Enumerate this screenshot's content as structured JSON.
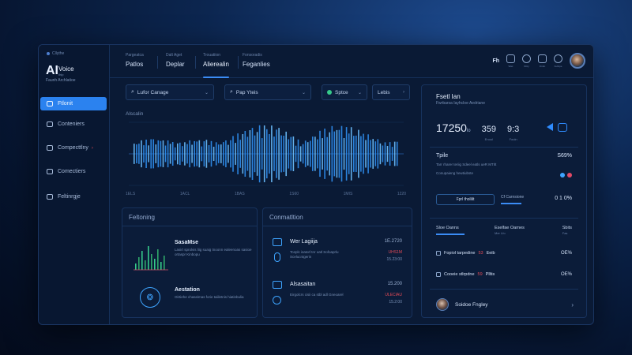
{
  "sidebar": {
    "tag": "Cllythe",
    "ai": "AI",
    "voice": "Voice",
    "sub1": "Ihip",
    "sub2": "Faunh Archlatioe",
    "items": [
      {
        "label": "Ftlonit",
        "active": true
      },
      {
        "label": "Conteniers",
        "active": false
      },
      {
        "label": "Compecttlny",
        "active": false,
        "arrow": "›"
      },
      {
        "label": "Comectiers",
        "active": false
      },
      {
        "label": "Feltinrgje",
        "active": false
      }
    ]
  },
  "tabs": [
    {
      "small": "Pargeatca",
      "label": "Patlos"
    },
    {
      "small": "Dalt Aget",
      "label": "Deplar"
    },
    {
      "small": "Trouatiion",
      "label": "Alierealin",
      "active": true
    },
    {
      "small": "Fonsoradis",
      "label": "Feganlies"
    }
  ],
  "top_icons": [
    {
      "name": "Fh",
      "label": ""
    },
    {
      "name": "panel",
      "label": "Wac"
    },
    {
      "name": "clock",
      "label": "Dilcy"
    },
    {
      "name": "share",
      "label": "Fivfet"
    },
    {
      "name": "settings",
      "label": "Feliirpe"
    }
  ],
  "controls": {
    "search": "Lufor Canage",
    "model": "Pap Yteis",
    "status": "Sptce",
    "lang": "Lebis"
  },
  "waveform": {
    "title": "Alscalin",
    "x_labels": [
      "1ELS",
      "1ACL",
      "1BAS",
      "1S60",
      "1MIS",
      "1220"
    ]
  },
  "recording": {
    "title": "Feltoning",
    "items": [
      {
        "name": "SasaMse",
        "desc": "Lasirt sprolvis liig suaig tnoonn ealeenoas sasioe ortaspr Kinbopu"
      },
      {
        "name": "Aestation",
        "desc": "Oirtiehe chaseimas forie taiiletnis hiatinbulia"
      }
    ]
  },
  "conversations": {
    "title": "Conmatltion",
    "items": [
      {
        "name": "Wer Lagiija",
        "desc": "Tceplc isatorl tnr oatl Sofoaprlu Scelucntgerin",
        "time": "1E.2720",
        "badge": "UHS1M",
        "meta": "15.23:00"
      },
      {
        "name": "Alsasaitan",
        "desc": "Eirgolcrs cisii ca stbl adl Gneoarel",
        "time": "15.200",
        "badge": "ULECIAU",
        "meta": "15.2:00"
      }
    ]
  },
  "right": {
    "title": "Fsetl Ian",
    "subtitle": "Fwrbarsa Iayhcloe Aedriane",
    "stat_main": "17250",
    "stat_main_unit": "lo",
    "stat2": "359",
    "stat2_label": "Enoul",
    "stat3": "9:3",
    "stat3_label": "Fouln",
    "tone_label": "Tpile",
    "tone_value": "S69%",
    "tone_desc": "Tarr rharer teriig Sdeel eatls ueR MTIlt",
    "tone_desc2": "Conupaieng hewtiubste",
    "dot_colors": [
      "#3ea4ff",
      "#e34a66"
    ],
    "button_label": "Fprl tholilit",
    "secondary_label": "Cf Carnsione",
    "secondary_value": "0 1 0%",
    "subtabs": [
      {
        "label": "Sloe Oanns",
        "small": "",
        "active": true
      },
      {
        "label": "Eselfae Oarnes",
        "small": "Mer  Lfo"
      },
      {
        "label": "Sbits",
        "small": "Fas"
      }
    ],
    "options": [
      {
        "label": "Fopiol tarpedine",
        "red": "53",
        "rest": "Eeib",
        "value": "OE%"
      },
      {
        "label": "Cooeie stlrpdne",
        "red": "59",
        "rest": "Plltis",
        "value": "OE%"
      }
    ],
    "bottom_name": "Soidoe Fngley"
  },
  "colors": {
    "accent": "#2b82ef",
    "wave": "#3ea4ff",
    "alert": "#e34a56"
  }
}
